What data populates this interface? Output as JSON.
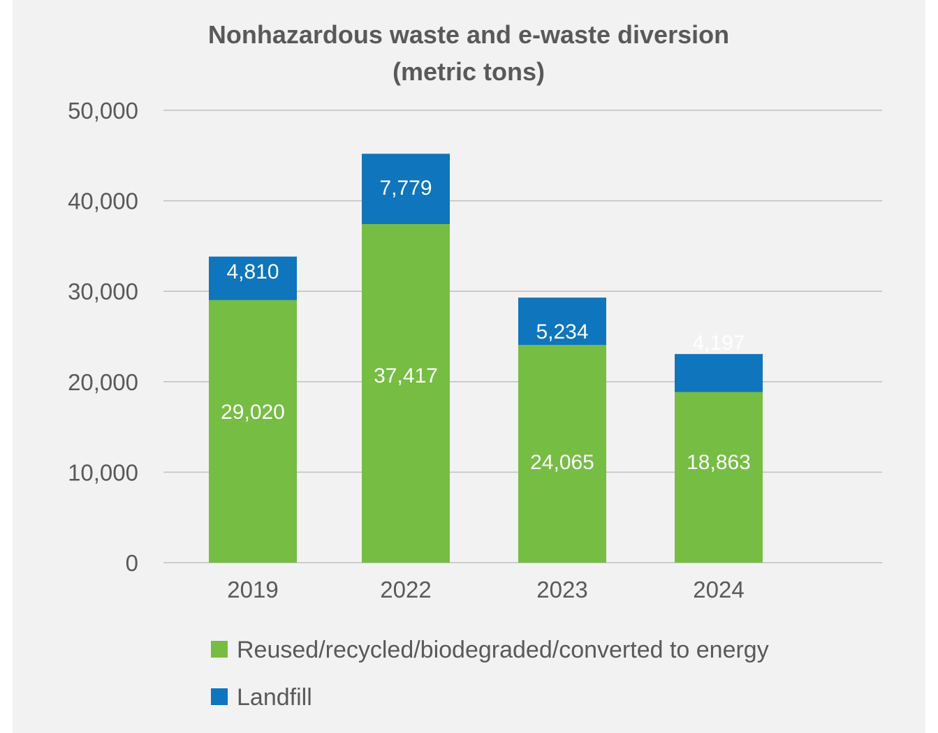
{
  "chart_data": {
    "type": "bar",
    "stacked": true,
    "title": "Nonhazardous waste and e-waste diversion",
    "subtitle": "(metric tons)",
    "xlabel": "",
    "ylabel": "",
    "categories": [
      "2019",
      "2022",
      "2023",
      "2024"
    ],
    "ylim": [
      0,
      50000
    ],
    "yticks": [
      0,
      10000,
      20000,
      30000,
      40000,
      50000
    ],
    "ytick_labels": [
      "0",
      "10,000",
      "20,000",
      "30,000",
      "40,000",
      "50,000"
    ],
    "grid": true,
    "legend_position": "bottom",
    "series": [
      {
        "name": "Reused/recycled/biodegraded/converted to energy",
        "color": "#76bd43",
        "values": [
          29020,
          37417,
          24065,
          18863
        ],
        "labels": [
          "29,020",
          "37,417",
          "24,065",
          "18,863"
        ]
      },
      {
        "name": "Landfill",
        "color": "#0f75bc",
        "values": [
          4810,
          7779,
          5234,
          4197
        ],
        "labels": [
          "4,810",
          "7,779",
          "5,234",
          "4,197"
        ]
      }
    ]
  }
}
